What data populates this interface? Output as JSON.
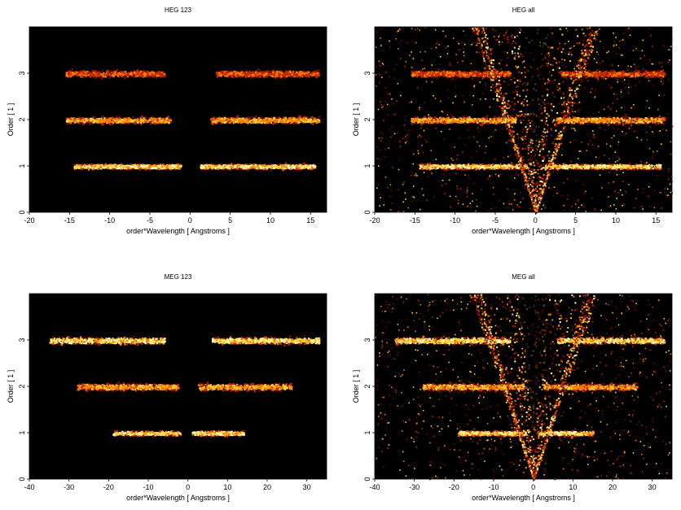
{
  "chart_data": [
    {
      "type": "heatmap",
      "title": "HEG 123",
      "xlabel": "order*Wavelength [ Angstroms ]",
      "ylabel": "Order [ 1 ]",
      "xlim": [
        -20,
        17
      ],
      "ylim": [
        0,
        4
      ],
      "xticks": [
        -20,
        -15,
        -10,
        -5,
        0,
        5,
        10,
        15
      ],
      "yticks": [
        0,
        1,
        2,
        3
      ],
      "colormap": "black-red-orange-yellow-white",
      "bands": [
        {
          "order": 1,
          "ranges": [
            [
              -14.5,
              -1.2
            ],
            [
              1.2,
              15.5
            ]
          ],
          "intensity": "high"
        },
        {
          "order": 2,
          "ranges": [
            [
              -15.5,
              -2.5
            ],
            [
              2.5,
              16
            ]
          ],
          "intensity": "medium"
        },
        {
          "order": 3,
          "ranges": [
            [
              -15.5,
              -3.2
            ],
            [
              3.2,
              16
            ]
          ],
          "intensity": "low"
        }
      ],
      "zero_order_wedge": false
    },
    {
      "type": "heatmap",
      "title": "HEG all",
      "xlabel": "order*Wavelength [ Angstroms ]",
      "ylabel": "Order [ 1 ]",
      "xlim": [
        -20,
        17
      ],
      "ylim": [
        0,
        4
      ],
      "xticks": [
        -20,
        -15,
        -10,
        -5,
        0,
        5,
        10,
        15
      ],
      "yticks": [
        0,
        1,
        2,
        3
      ],
      "colormap": "black-red-orange-yellow-white",
      "bands": [
        {
          "order": 1,
          "ranges": [
            [
              -14.5,
              -1.2
            ],
            [
              1.2,
              15.5
            ]
          ],
          "intensity": "high"
        },
        {
          "order": 2,
          "ranges": [
            [
              -15.5,
              -2.5
            ],
            [
              2.5,
              16
            ]
          ],
          "intensity": "medium"
        },
        {
          "order": 3,
          "ranges": [
            [
              -15.5,
              -3.2
            ],
            [
              3.2,
              16
            ]
          ],
          "intensity": "low"
        }
      ],
      "zero_order_wedge": true
    },
    {
      "type": "heatmap",
      "title": "MEG 123",
      "xlabel": "order*Wavelength [ Angstroms ]",
      "ylabel": "Order [ 1 ]",
      "xlim": [
        -40,
        35
      ],
      "ylim": [
        0,
        4
      ],
      "xticks": [
        -40,
        -30,
        -20,
        -10,
        0,
        10,
        20,
        30
      ],
      "yticks": [
        0,
        1,
        2,
        3
      ],
      "colormap": "black-red-orange-yellow-white",
      "bands": [
        {
          "order": 1,
          "ranges": [
            [
              -19,
              -2
            ],
            [
              1,
              14
            ]
          ],
          "intensity": "high"
        },
        {
          "order": 2,
          "ranges": [
            [
              -28,
              -2.5
            ],
            [
              2.5,
              26
            ]
          ],
          "intensity": "medium"
        },
        {
          "order": 3,
          "ranges": [
            [
              -35,
              -6
            ],
            [
              6,
              33
            ]
          ],
          "intensity": "high"
        }
      ],
      "zero_order_wedge": false
    },
    {
      "type": "heatmap",
      "title": "MEG all",
      "xlabel": "order*Wavelength [ Angstroms ]",
      "ylabel": "Order [ 1 ]",
      "xlim": [
        -40,
        35
      ],
      "ylim": [
        0,
        4
      ],
      "xticks": [
        -40,
        -30,
        -20,
        -10,
        0,
        10,
        20,
        30
      ],
      "yticks": [
        0,
        1,
        2,
        3
      ],
      "colormap": "black-red-orange-yellow-white",
      "bands": [
        {
          "order": 1,
          "ranges": [
            [
              -19,
              -2
            ],
            [
              1,
              15
            ]
          ],
          "intensity": "high"
        },
        {
          "order": 2,
          "ranges": [
            [
              -28,
              -2.5
            ],
            [
              2.5,
              26
            ]
          ],
          "intensity": "medium"
        },
        {
          "order": 3,
          "ranges": [
            [
              -35,
              -6
            ],
            [
              6,
              33
            ]
          ],
          "intensity": "high"
        }
      ],
      "zero_order_wedge": true
    }
  ]
}
